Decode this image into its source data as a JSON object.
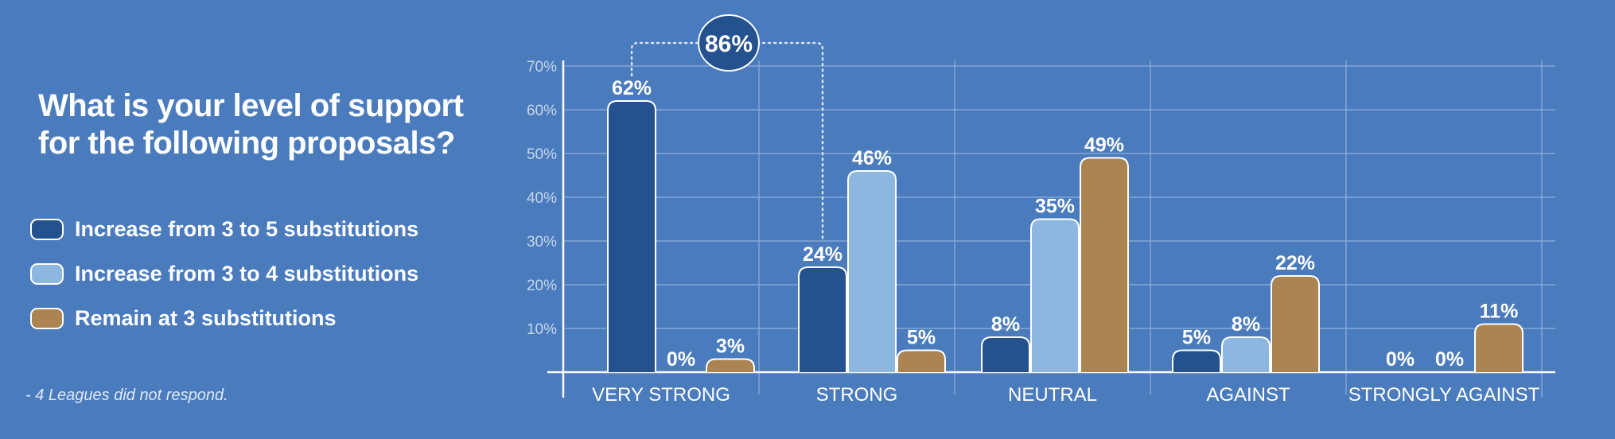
{
  "title": "What is your level of support for the following proposals?",
  "footnote": "- 4 Leagues did not respond.",
  "colors": {
    "background": "#4a7bbd",
    "series": [
      "#24528f",
      "#8db6e1",
      "#ac8452"
    ],
    "grid": "#8fb0db",
    "callout": "#24528f"
  },
  "legend": [
    {
      "label": "Increase from 3 to 5 substitutions",
      "color": "#24528f"
    },
    {
      "label": "Increase from 3 to 4 substitutions",
      "color": "#8db6e1"
    },
    {
      "label": "Remain at 3 substitutions",
      "color": "#ac8452"
    }
  ],
  "callout": {
    "label": "86%",
    "spans": [
      "VERY STRONG",
      "STRONG"
    ],
    "series": "Increase from 3 to 5 substitutions"
  },
  "chart_data": {
    "type": "bar",
    "categories": [
      "VERY STRONG",
      "STRONG",
      "NEUTRAL",
      "AGAINST",
      "STRONGLY AGAINST"
    ],
    "series": [
      {
        "name": "Increase from 3 to 5 substitutions",
        "values": [
          62,
          24,
          8,
          5,
          0
        ],
        "labels": [
          "62%",
          "24%",
          "8%",
          "5%",
          "0%"
        ]
      },
      {
        "name": "Increase from 3 to 4 substitutions",
        "values": [
          0,
          46,
          35,
          8,
          0
        ],
        "labels": [
          "0%",
          "46%",
          "35%",
          "8%",
          "0%"
        ]
      },
      {
        "name": "Remain at 3 substitutions",
        "values": [
          3,
          5,
          49,
          22,
          11
        ],
        "labels": [
          "3%",
          "5%",
          "49%",
          "22%",
          "11%"
        ]
      }
    ],
    "yticks": [
      10,
      20,
      30,
      40,
      50,
      60,
      70
    ],
    "ytick_labels": [
      "10%",
      "20%",
      "30%",
      "40%",
      "50%",
      "60%",
      "70%"
    ],
    "ylim": [
      0,
      70
    ],
    "grid": true,
    "legend_position": "left"
  }
}
